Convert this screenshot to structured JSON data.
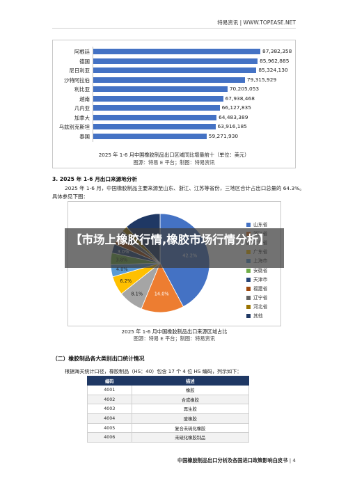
{
  "header": {
    "text": "特易资讯 | WWW.TOPEASE.NET"
  },
  "bar_chart": {
    "caption": "2025 年 1-6 月中国橡胶制品出口区域同比增量前十（单位：美元）",
    "source": "图源：特易 E 平台；制图：特易资讯"
  },
  "section3": {
    "title": "3.   2025 年 1-6 月出口来源地分析",
    "para1": "2025 年 1-6 月，中国橡胶制品主要来源至山东、浙江、江苏等省份，三地区合计占出口总量的 64.3%。",
    "para2": "具体参见下图："
  },
  "pie_chart": {
    "caption": "2025 年 1-6 月中国橡胶制品出口来源区域占比",
    "source": "图源：特易 E 平台；制图：特易资讯"
  },
  "banner": {
    "text": "【市场上橡胶行情,橡胶市场行情分析】"
  },
  "section_two": {
    "title": "（二）橡胶制品各大类别出口统计情况",
    "intro": "根据海关统计口径，橡胶制品（HS：40）包含 17 个 4 位 HS 编码，列示如下："
  },
  "hs_table": {
    "headers": [
      "编码",
      "描述"
    ],
    "rows": [
      [
        "4001",
        "橡胶"
      ],
      [
        "4002",
        "合成橡胶"
      ],
      [
        "4003",
        "再生胶"
      ],
      [
        "4004",
        "废橡胶"
      ],
      [
        "4005",
        "复合未硫化橡胶"
      ],
      [
        "4006",
        "未硫化橡胶制品"
      ]
    ]
  },
  "footer": {
    "text": "中国橡胶制品出口分析及各国进口政策影响白皮书",
    "page": "4"
  },
  "chart_data": [
    {
      "type": "bar",
      "orientation": "horizontal",
      "categories": [
        "阿根廷",
        "德国",
        "尼日利亚",
        "沙特阿拉伯",
        "利比亚",
        "越南",
        "几内亚",
        "加拿大",
        "乌兹别克斯坦",
        "泰国"
      ],
      "values": [
        87382358,
        85962885,
        85324130,
        79315929,
        70205053,
        67938468,
        66127835,
        64483389,
        63916185,
        59271930
      ],
      "value_labels": [
        "87,382,358",
        "85,962,885",
        "85,324,130",
        "79,315,929",
        "70,205,053",
        "67,938,468",
        "66,127,835",
        "64,483,389",
        "63,916,185",
        "59,271,930"
      ],
      "color": "#4472c4"
    },
    {
      "type": "pie",
      "start": "top, clockwise",
      "slices": [
        {
          "name": "山东省",
          "value": 42.2,
          "label": "42.2%",
          "color": "#4472c4"
        },
        {
          "name": "浙江省",
          "value": 14.0,
          "label": "14.0%",
          "color": "#ed7d31"
        },
        {
          "name": "江苏省",
          "value": 8.1,
          "label": "8.1%",
          "color": "#a5a5a5"
        },
        {
          "name": "广东省",
          "value": 6.2,
          "label": "6.2%",
          "color": "#ffc000"
        },
        {
          "name": "上海市",
          "value": 4.0,
          "label": "4.0%",
          "color": "#5b9bd5"
        },
        {
          "name": "安徽省",
          "value": 3.8,
          "label": "3.8%",
          "color": "#70ad47"
        },
        {
          "name": "天津市",
          "value": 3.0,
          "label": "3.0%",
          "color": "#264478"
        },
        {
          "name": "福建省",
          "value": 2.6,
          "label": "",
          "color": "#9e480e"
        },
        {
          "name": "辽宁省",
          "value": 2.3,
          "label": "",
          "color": "#636363"
        },
        {
          "name": "河北省",
          "value": 1.9,
          "label": "1.9%",
          "color": "#997300"
        },
        {
          "name": "其他",
          "value": 11.9,
          "label": "",
          "color": "#1f3864"
        }
      ]
    }
  ]
}
